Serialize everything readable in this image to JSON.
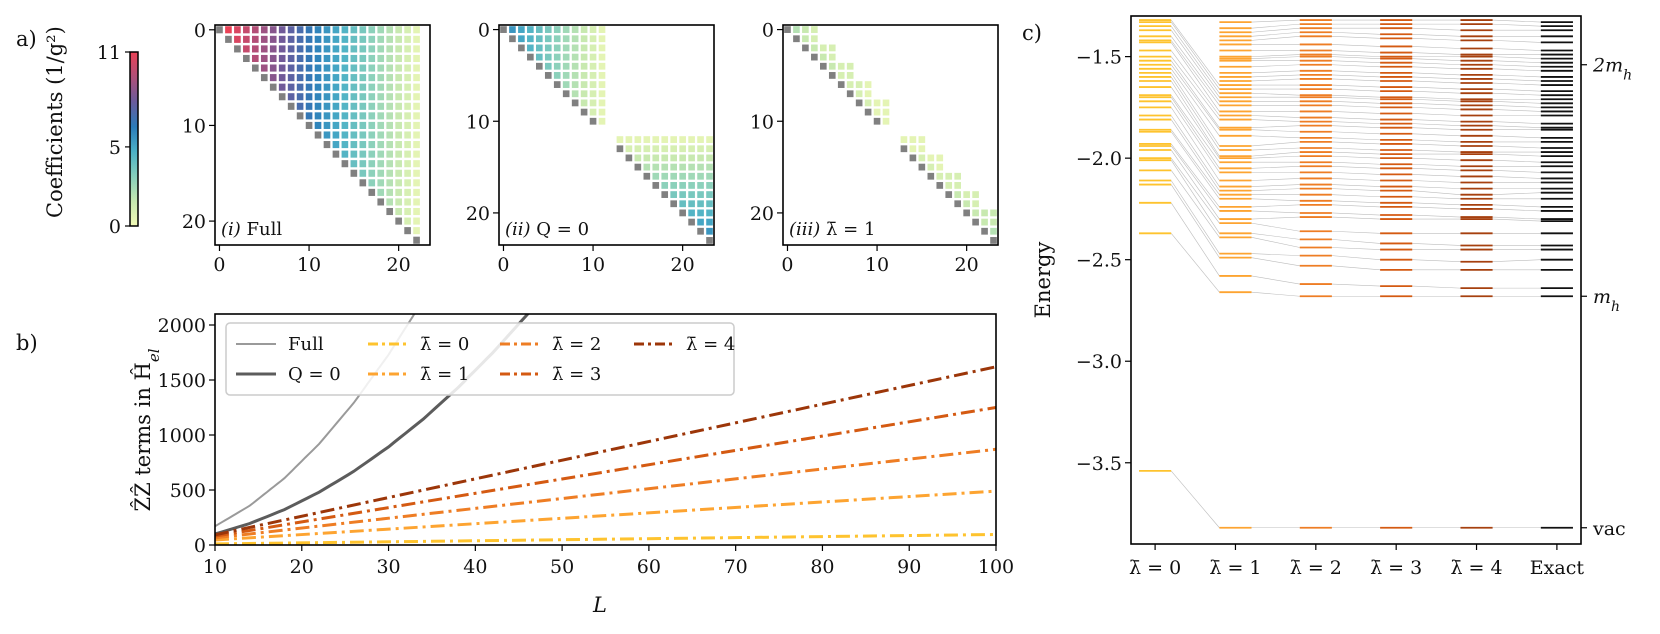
{
  "figure": {
    "panel_a_label": "a)",
    "panel_b_label": "b)",
    "panel_c_label": "c)"
  },
  "colorbar": {
    "label": "Coefficients",
    "unit": "(1/g²)",
    "vmin": 0,
    "vmax": 11,
    "ticks": [
      0,
      5,
      11
    ],
    "colormap": [
      "#f2fab6",
      "#c6e8b0",
      "#86cfbc",
      "#4bb0c6",
      "#2b7bb9",
      "#6a5b9c",
      "#b04f78",
      "#ea4256"
    ],
    "diagonal_color": "#808080"
  },
  "chart_data": [
    {
      "type": "heatmap",
      "panel": "i",
      "label_index": "(i)",
      "label_text": "Full",
      "xlim": [
        -0.5,
        23.5
      ],
      "ylim": [
        -0.5,
        22.5
      ],
      "xticks": [
        0,
        10,
        20
      ],
      "yticks": [
        0,
        10,
        20
      ],
      "diagonal": [
        [
          0,
          22
        ]
      ],
      "blocks": [
        {
          "rows": [
            0,
            21
          ],
          "col_end": 22,
          "by": "column",
          "start": 1,
          "values": [
            11,
            10.5,
            10,
            9.5,
            9,
            8.5,
            8,
            7.5,
            7,
            6.5,
            6,
            5.5,
            5,
            4.5,
            4,
            3.5,
            3,
            2.5,
            2,
            1.5,
            1,
            0.5
          ]
        }
      ],
      "rows": []
    },
    {
      "type": "heatmap",
      "panel": "ii",
      "label_index": "(ii)",
      "label_text": "Q = 0",
      "xlim": [
        -0.5,
        23.5
      ],
      "ylim": [
        -0.5,
        23.5
      ],
      "xticks": [
        0,
        10,
        20
      ],
      "yticks": [
        0,
        10,
        20
      ],
      "diagonal": [
        [
          0,
          10
        ],
        [
          13,
          23
        ]
      ],
      "blocks": [
        {
          "rows": [
            0,
            10
          ],
          "col_end": 11,
          "by": "column",
          "start": 1,
          "values": [
            5.5,
            5,
            4.5,
            4,
            3.5,
            3,
            2.5,
            2,
            1.5,
            1,
            0.5
          ]
        },
        {
          "rows": [
            12,
            22
          ],
          "col_end": 23,
          "by": "row",
          "start": 12,
          "values": [
            0.5,
            1,
            1.5,
            2,
            2.5,
            3,
            3.5,
            4,
            4.5,
            5,
            5.5
          ]
        }
      ],
      "rows": []
    },
    {
      "type": "heatmap",
      "panel": "iii",
      "label_index": "(iii)",
      "label_text": "λ̄ = 1",
      "xlim": [
        -0.5,
        23.5
      ],
      "ylim": [
        -0.5,
        23.5
      ],
      "xticks": [
        0,
        10,
        20
      ],
      "yticks": [
        0,
        10,
        20
      ],
      "diagonal": [
        [
          0,
          10
        ],
        [
          13,
          23
        ]
      ],
      "blocks": [],
      "rows": [
        {
          "row": 0,
          "start": 1,
          "values": [
            2,
            1.5,
            1
          ]
        },
        {
          "row": 1,
          "start": 2,
          "values": [
            1.5,
            1
          ]
        },
        {
          "row": 2,
          "start": 3,
          "values": [
            1.5,
            1,
            1
          ]
        },
        {
          "row": 3,
          "start": 4,
          "values": [
            1.5,
            1
          ]
        },
        {
          "row": 4,
          "start": 5,
          "values": [
            1.5,
            1,
            1
          ]
        },
        {
          "row": 5,
          "start": 6,
          "values": [
            1,
            1
          ]
        },
        {
          "row": 6,
          "start": 7,
          "values": [
            1,
            1,
            0.5
          ]
        },
        {
          "row": 7,
          "start": 8,
          "values": [
            1,
            0.5
          ]
        },
        {
          "row": 8,
          "start": 9,
          "values": [
            1,
            0.5,
            0.5
          ]
        },
        {
          "row": 9,
          "start": 10,
          "values": [
            0.5,
            0.5
          ]
        },
        {
          "row": 10,
          "start": 11,
          "values": [
            0.5
          ]
        },
        {
          "row": 12,
          "start": 13,
          "values": [
            0.5,
            0.5,
            0.5
          ]
        },
        {
          "row": 13,
          "start": 14,
          "values": [
            0.5,
            0.5
          ]
        },
        {
          "row": 14,
          "start": 15,
          "values": [
            1,
            0.5,
            0.5
          ]
        },
        {
          "row": 15,
          "start": 16,
          "values": [
            1,
            0.5
          ]
        },
        {
          "row": 16,
          "start": 17,
          "values": [
            1,
            1,
            1
          ]
        },
        {
          "row": 17,
          "start": 18,
          "values": [
            1,
            1
          ]
        },
        {
          "row": 18,
          "start": 19,
          "values": [
            1.5,
            1,
            1
          ]
        },
        {
          "row": 19,
          "start": 20,
          "values": [
            1.5,
            1
          ]
        },
        {
          "row": 20,
          "start": 21,
          "values": [
            1.5,
            1.5,
            1.5
          ]
        },
        {
          "row": 21,
          "start": 22,
          "values": [
            1.5,
            1.5
          ]
        },
        {
          "row": 22,
          "start": 23,
          "values": [
            2
          ]
        }
      ]
    },
    {
      "type": "line",
      "xlabel": "L",
      "ylabel": "ẐẐ terms in Ĥ",
      "ylabel_sub": "el",
      "xlim": [
        10,
        100
      ],
      "ylim": [
        0,
        2100
      ],
      "xticks": [
        10,
        20,
        30,
        40,
        50,
        60,
        70,
        80,
        90,
        100
      ],
      "yticks": [
        0,
        500,
        1000,
        1500,
        2000
      ],
      "legend": "top-left",
      "series": [
        {
          "name": "Full",
          "color": "#9a9a9a",
          "style": "solid",
          "x": [
            10,
            14,
            18,
            22,
            26,
            30,
            34
          ],
          "y": [
            170,
            357,
            607,
            919,
            1293,
            1730,
            2229
          ]
        },
        {
          "name": "Q = 0",
          "color": "#5c5c5c",
          "style": "solid",
          "x": [
            10,
            14,
            18,
            22,
            26,
            30,
            34,
            38,
            42,
            46,
            50
          ],
          "y": [
            100,
            195,
            322,
            480,
            670,
            892,
            1145,
            1430,
            1747,
            2096,
            2476
          ]
        },
        {
          "name": "λ̄ = 0",
          "color": "#fec32e",
          "style": "dashdot",
          "x": [
            10,
            100
          ],
          "y": [
            10,
            95
          ]
        },
        {
          "name": "λ̄ = 1",
          "color": "#fda431",
          "style": "dashdot",
          "x": [
            10,
            100
          ],
          "y": [
            45,
            490
          ]
        },
        {
          "name": "λ̄ = 2",
          "color": "#ee7d24",
          "style": "dashdot",
          "x": [
            10,
            100
          ],
          "y": [
            65,
            870
          ]
        },
        {
          "name": "λ̄ = 3",
          "color": "#d45a12",
          "style": "dashdot",
          "x": [
            10,
            100
          ],
          "y": [
            80,
            1250
          ]
        },
        {
          "name": "λ̄ = 4",
          "color": "#9c3609",
          "style": "dashdot",
          "x": [
            10,
            100
          ],
          "y": [
            92,
            1620
          ]
        }
      ]
    },
    {
      "type": "spectrum",
      "ylabel": "Energy",
      "ylim": [
        -3.9,
        -1.3
      ],
      "yticks": [
        -1.5,
        -2.0,
        -2.5,
        -3.0,
        -3.5
      ],
      "right_ticks": [
        {
          "value": -1.54,
          "label": "2m",
          "sub": "h"
        },
        {
          "value": -2.68,
          "label": "m",
          "sub": "h"
        },
        {
          "value": -3.82,
          "label": "vac",
          "sub": ""
        }
      ],
      "connector_color": "#a0a0a0",
      "columns": [
        {
          "label": "λ̄ = 0",
          "color": "#fec32e",
          "levels": [
            -3.54,
            -2.37,
            -2.22,
            -2.13,
            -2.11,
            -2.06,
            -2.01,
            -2.0,
            -1.96,
            -1.94,
            -1.93,
            -1.87,
            -1.86,
            -1.81,
            -1.79,
            -1.75,
            -1.72,
            -1.7,
            -1.69,
            -1.65,
            -1.62,
            -1.6,
            -1.58,
            -1.56,
            -1.54,
            -1.52,
            -1.5,
            -1.47,
            -1.43,
            -1.42,
            -1.4,
            -1.37,
            -1.35,
            -1.33,
            -1.32
          ]
        },
        {
          "label": "λ̄ = 1",
          "color": "#fda431",
          "levels": [
            -3.82,
            -2.66,
            -2.58,
            -2.49,
            -2.47,
            -2.39,
            -2.37,
            -2.32,
            -2.3,
            -2.26,
            -2.24,
            -2.2,
            -2.18,
            -2.16,
            -2.14,
            -2.11,
            -2.07,
            -2.05,
            -2.02,
            -2.0,
            -1.99,
            -1.96,
            -1.94,
            -1.89,
            -1.86,
            -1.85,
            -1.81,
            -1.79,
            -1.77,
            -1.74,
            -1.72,
            -1.7,
            -1.68,
            -1.66,
            -1.64,
            -1.62,
            -1.6,
            -1.58,
            -1.55,
            -1.52,
            -1.51,
            -1.5,
            -1.47,
            -1.44,
            -1.42,
            -1.4,
            -1.38,
            -1.36,
            -1.33
          ]
        },
        {
          "label": "λ̄ = 2",
          "color": "#ee7d24",
          "levels": [
            -3.82,
            -2.68,
            -2.62,
            -2.53,
            -2.48,
            -2.44,
            -2.4,
            -2.36,
            -2.29,
            -2.27,
            -2.23,
            -2.21,
            -2.18,
            -2.15,
            -2.13,
            -2.1,
            -2.07,
            -2.04,
            -2.02,
            -1.99,
            -1.97,
            -1.95,
            -1.92,
            -1.9,
            -1.87,
            -1.84,
            -1.82,
            -1.8,
            -1.77,
            -1.74,
            -1.72,
            -1.7,
            -1.69,
            -1.66,
            -1.64,
            -1.61,
            -1.59,
            -1.57,
            -1.54,
            -1.52,
            -1.5,
            -1.49,
            -1.47,
            -1.44,
            -1.4,
            -1.38,
            -1.36,
            -1.34,
            -1.32
          ]
        },
        {
          "label": "λ̄ = 3",
          "color": "#d45a12",
          "levels": [
            -3.82,
            -2.68,
            -2.63,
            -2.55,
            -2.5,
            -2.45,
            -2.42,
            -2.37,
            -2.3,
            -2.28,
            -2.24,
            -2.22,
            -2.19,
            -2.16,
            -2.14,
            -2.11,
            -2.08,
            -2.05,
            -2.03,
            -2.0,
            -1.98,
            -1.96,
            -1.93,
            -1.91,
            -1.88,
            -1.85,
            -1.83,
            -1.81,
            -1.78,
            -1.75,
            -1.73,
            -1.71,
            -1.7,
            -1.67,
            -1.65,
            -1.62,
            -1.6,
            -1.58,
            -1.55,
            -1.53,
            -1.51,
            -1.5,
            -1.48,
            -1.45,
            -1.41,
            -1.39,
            -1.36,
            -1.34,
            -1.32
          ]
        },
        {
          "label": "λ̄ = 4",
          "color": "#a6400f",
          "levels": [
            -3.82,
            -2.68,
            -2.64,
            -2.55,
            -2.51,
            -2.45,
            -2.43,
            -2.37,
            -2.3,
            -2.29,
            -2.25,
            -2.23,
            -2.2,
            -2.18,
            -2.15,
            -2.12,
            -2.09,
            -2.06,
            -2.04,
            -2.01,
            -1.98,
            -1.97,
            -1.94,
            -1.92,
            -1.89,
            -1.86,
            -1.84,
            -1.82,
            -1.79,
            -1.76,
            -1.74,
            -1.72,
            -1.71,
            -1.68,
            -1.66,
            -1.63,
            -1.61,
            -1.59,
            -1.56,
            -1.54,
            -1.52,
            -1.5,
            -1.49,
            -1.46,
            -1.42,
            -1.4,
            -1.37,
            -1.34,
            -1.32
          ]
        },
        {
          "label": "Exact",
          "color": "#111111",
          "levels": [
            -3.82,
            -2.68,
            -2.64,
            -2.55,
            -2.5,
            -2.45,
            -2.43,
            -2.37,
            -2.31,
            -2.3,
            -2.26,
            -2.24,
            -2.2,
            -2.17,
            -2.15,
            -2.12,
            -2.1,
            -2.07,
            -2.04,
            -2.02,
            -1.99,
            -1.97,
            -1.95,
            -1.92,
            -1.9,
            -1.86,
            -1.85,
            -1.83,
            -1.79,
            -1.77,
            -1.75,
            -1.73,
            -1.71,
            -1.69,
            -1.67,
            -1.64,
            -1.62,
            -1.6,
            -1.57,
            -1.55,
            -1.53,
            -1.51,
            -1.49,
            -1.47,
            -1.43,
            -1.4,
            -1.37,
            -1.35,
            -1.33
          ]
        }
      ]
    }
  ]
}
